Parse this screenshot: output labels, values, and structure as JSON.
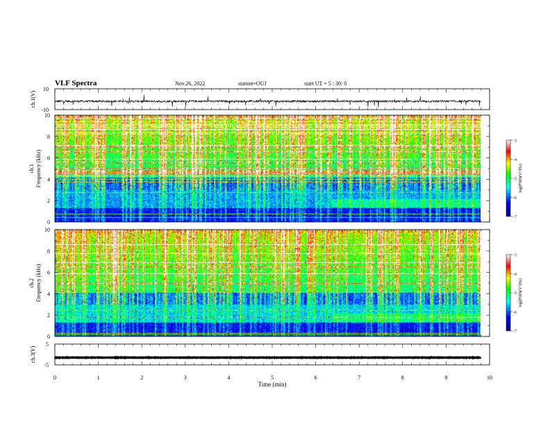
{
  "header": {
    "title": "VLF Spectra",
    "date": "Nov.26, 2022",
    "station": "station=OUJ",
    "start": "start  UT =  5 : 30: 0"
  },
  "chart_data": [
    {
      "type": "line",
      "name": "waveform-ch1",
      "ylabel": "ch.1(V)",
      "ylim": [
        -10,
        10
      ],
      "ytick_labels": [
        "10",
        "-10"
      ],
      "xlim": [
        0,
        10
      ],
      "baseline": -2
    },
    {
      "type": "heatmap",
      "name": "spectrogram-ch1",
      "ylabel_top": "ch.1",
      "ylabel": "Frequency (kHz)",
      "ylim": [
        0,
        10
      ],
      "yticks": [
        0,
        2,
        4,
        6,
        8,
        10
      ],
      "xlim": [
        0,
        9.8
      ],
      "colorbar": {
        "label": "log(PSD)(V²/Hz)",
        "range": [
          -7,
          -3
        ],
        "ticks": [
          -3,
          -4,
          -5,
          -6,
          -7
        ]
      }
    },
    {
      "type": "heatmap",
      "name": "spectrogram-ch2",
      "ylabel_top": "ch.2",
      "ylabel": "Frequency (kHz)",
      "ylim": [
        0,
        10
      ],
      "yticks": [
        0,
        2,
        4,
        6,
        8,
        10
      ],
      "xlim": [
        0,
        9.8
      ],
      "colorbar": {
        "label": "log(PSD)(V²/Hz)",
        "range": [
          -7,
          -3
        ],
        "ticks": [
          -3,
          -4,
          -5,
          -6,
          -7
        ]
      }
    },
    {
      "type": "line",
      "name": "waveform-ch3",
      "ylabel": "ch.3(V)",
      "ylim": [
        -5,
        5
      ],
      "ytick_labels": [
        "5",
        "-5"
      ],
      "xlim": [
        0,
        10
      ],
      "baseline": -1.5
    }
  ],
  "xaxis": {
    "label": "Time (min)",
    "range": [
      0,
      10
    ],
    "ticks": [
      "0",
      "1",
      "2",
      "3",
      "4",
      "5",
      "6",
      "7",
      "8",
      "9",
      "10"
    ]
  },
  "colors": {
    "colormap": [
      "#000080",
      "#0000ff",
      "#00ffff",
      "#00ff00",
      "#ffff00",
      "#ff0000",
      "#ffffff"
    ]
  }
}
